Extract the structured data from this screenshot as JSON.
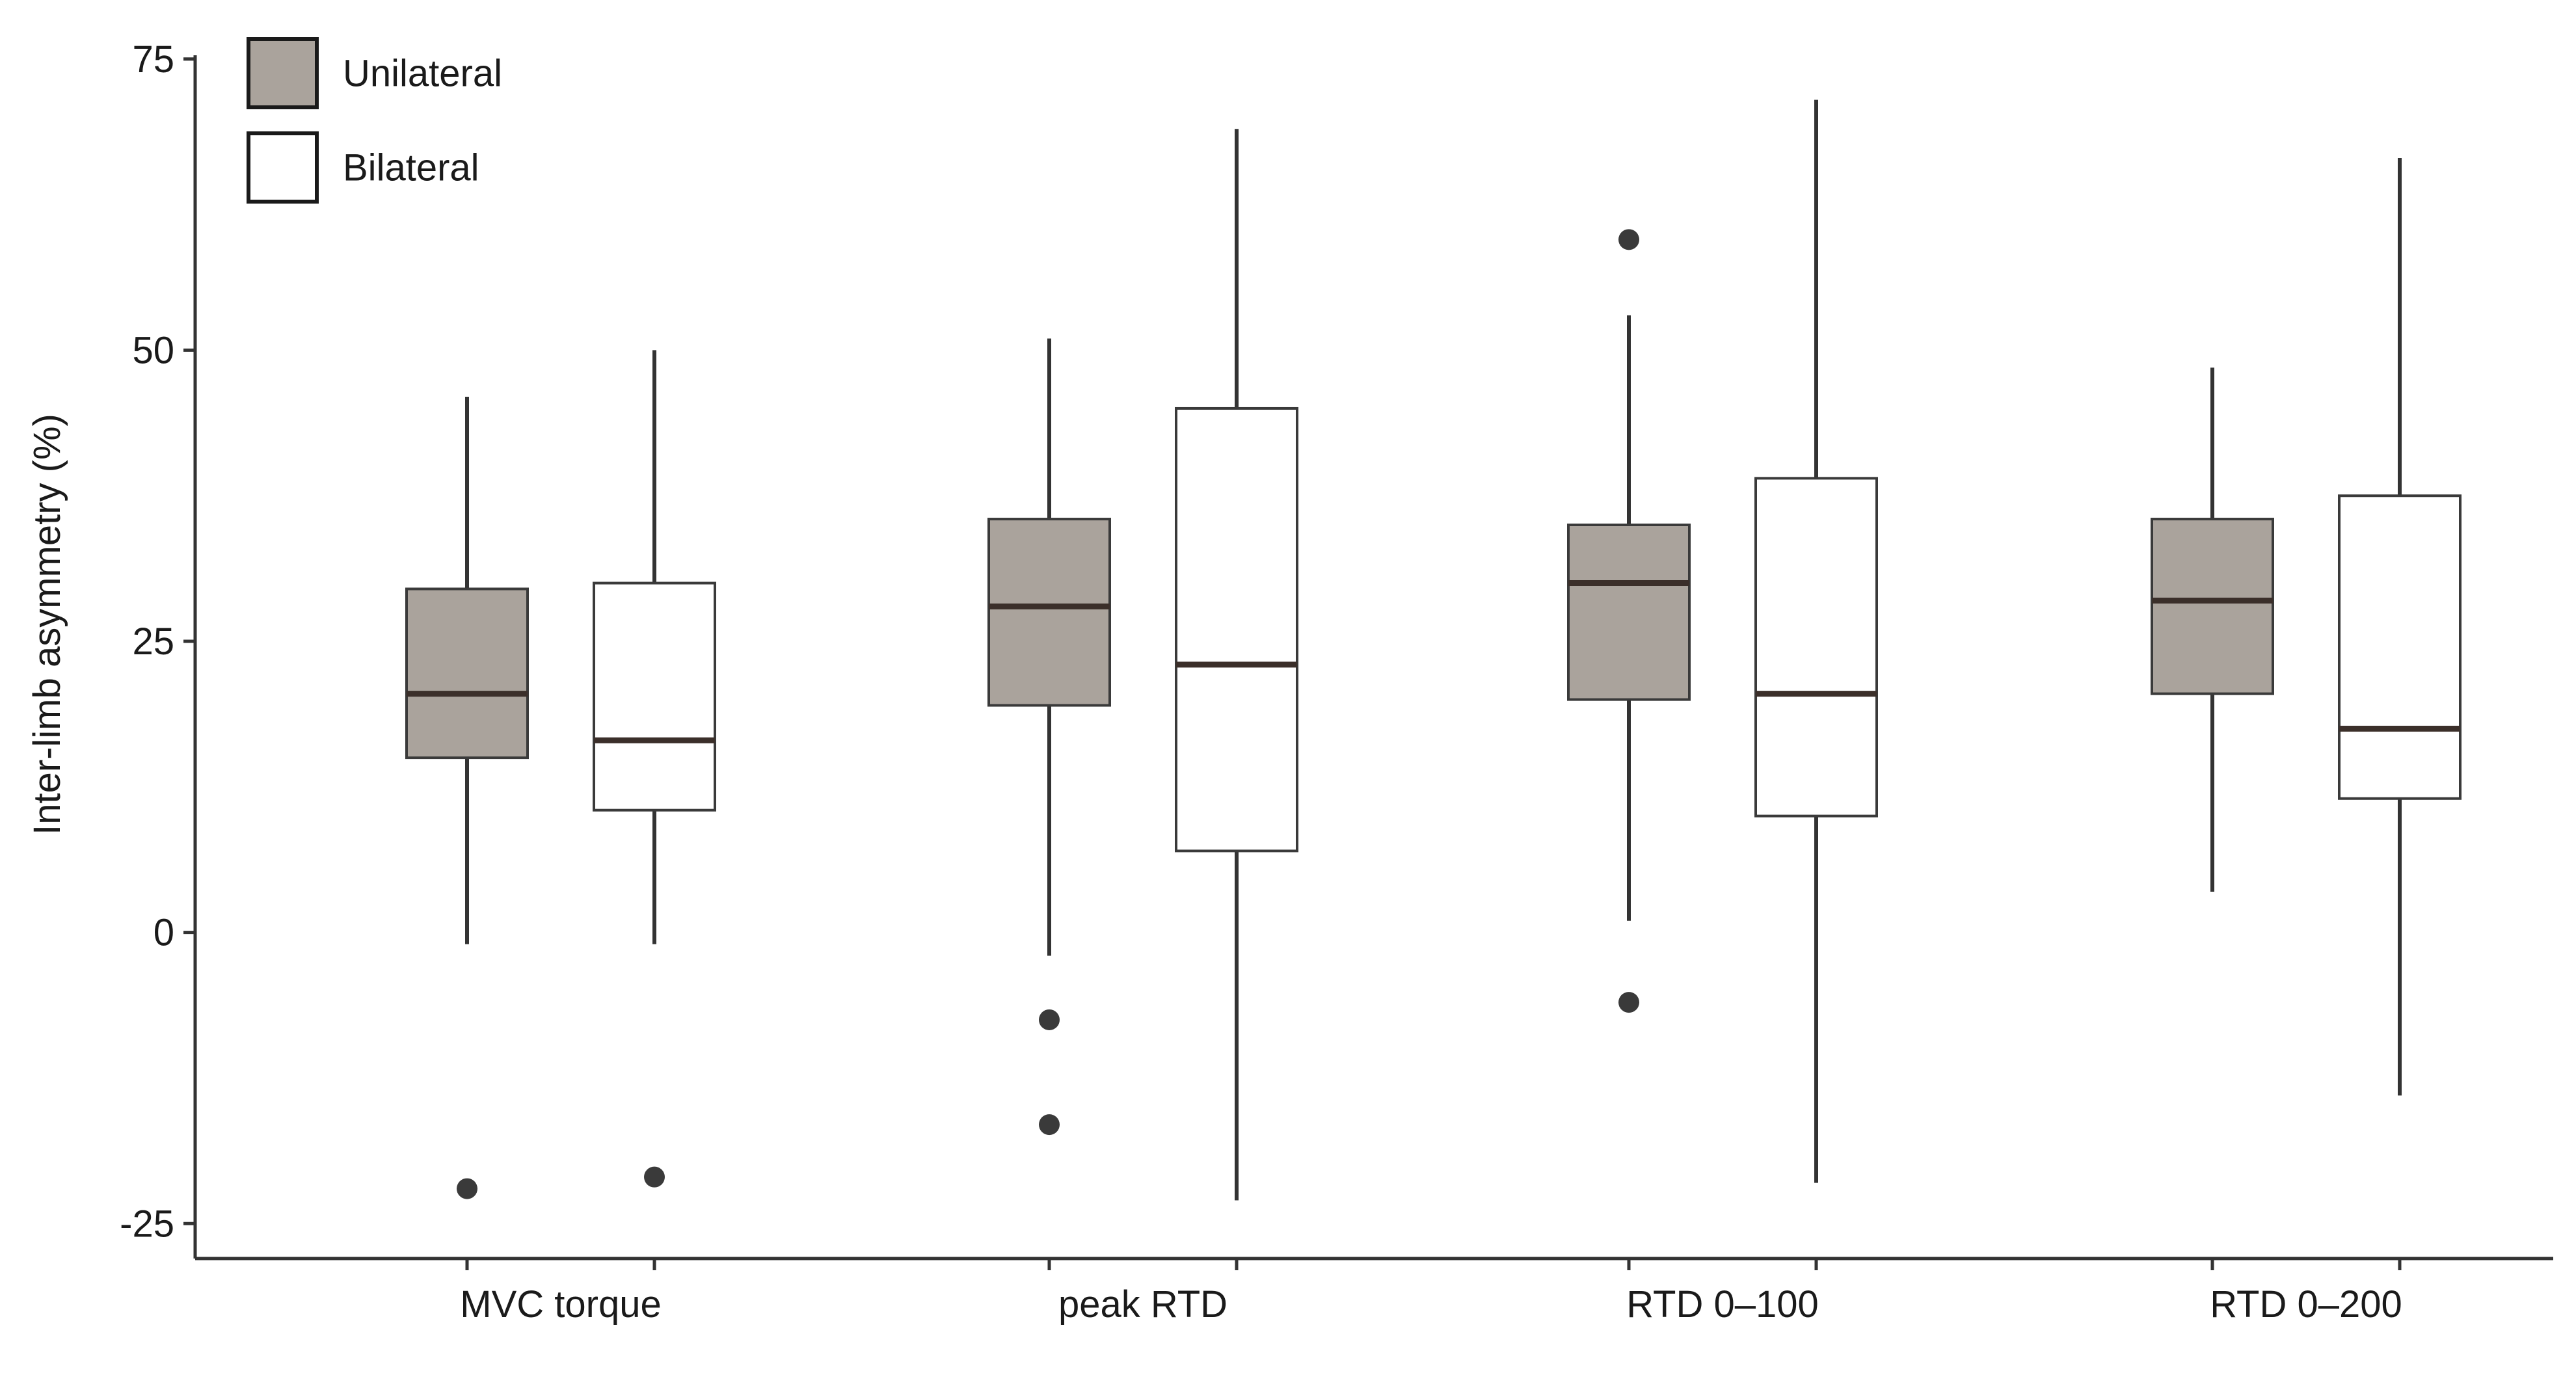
{
  "chart_data": {
    "type": "boxplot",
    "title": "",
    "xlabel": "",
    "ylabel": "Inter-limb asymmetry (%)",
    "ylim": [
      -28,
      77
    ],
    "yticks": [
      -25,
      0,
      25,
      50,
      75
    ],
    "ytick_labels": [
      "-25",
      "0",
      "25",
      "50",
      "75"
    ],
    "categories": [
      "MVC torque",
      "peak RTD",
      "RTD 0–100",
      "RTD 0–200"
    ],
    "legend": {
      "position": "top-left",
      "entries": [
        {
          "name": "Unilateral",
          "color": "#aaa39c"
        },
        {
          "name": "Bilateral",
          "color": "#ffffff"
        }
      ]
    },
    "series": [
      {
        "name": "Unilateral",
        "fill": "#aaa39c",
        "boxes": [
          {
            "category": "MVC torque",
            "whisker_low": -1,
            "q1": 15,
            "median": 20.5,
            "q3": 29.5,
            "whisker_high": 46,
            "outliers": [
              -22
            ]
          },
          {
            "category": "peak RTD",
            "whisker_low": -2,
            "q1": 19.5,
            "median": 28,
            "q3": 35.5,
            "whisker_high": 51,
            "outliers": [
              -7.5,
              -16.5
            ]
          },
          {
            "category": "RTD 0–100",
            "whisker_low": 1,
            "q1": 20,
            "median": 30,
            "q3": 35,
            "whisker_high": 53,
            "outliers": [
              59.5,
              -6
            ]
          },
          {
            "category": "RTD 0–200",
            "whisker_low": 3.5,
            "q1": 20.5,
            "median": 28.5,
            "q3": 35.5,
            "whisker_high": 48.5,
            "outliers": []
          }
        ]
      },
      {
        "name": "Bilateral",
        "fill": "#ffffff",
        "boxes": [
          {
            "category": "MVC torque",
            "whisker_low": -1,
            "q1": 10.5,
            "median": 16.5,
            "q3": 30,
            "whisker_high": 50,
            "outliers": [
              -21
            ]
          },
          {
            "category": "peak RTD",
            "whisker_low": -23,
            "q1": 7,
            "median": 23,
            "q3": 45,
            "whisker_high": 69,
            "outliers": []
          },
          {
            "category": "RTD 0–100",
            "whisker_low": -21.5,
            "q1": 10,
            "median": 20.5,
            "q3": 39,
            "whisker_high": 71.5,
            "outliers": []
          },
          {
            "category": "RTD 0–200",
            "whisker_low": -14,
            "q1": 11.5,
            "median": 17.5,
            "q3": 37.5,
            "whisker_high": 66.5,
            "outliers": []
          }
        ]
      }
    ]
  }
}
